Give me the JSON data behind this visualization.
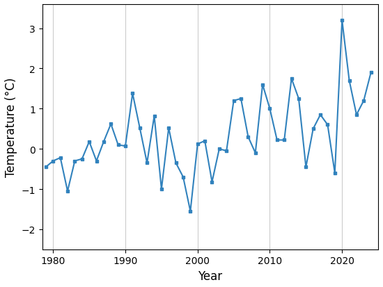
{
  "years": [
    1979,
    1980,
    1981,
    1982,
    1983,
    1984,
    1985,
    1986,
    1987,
    1988,
    1989,
    1990,
    1991,
    1992,
    1993,
    1994,
    1995,
    1996,
    1997,
    1998,
    1999,
    2000,
    2001,
    2002,
    2003,
    2004,
    2005,
    2006,
    2007,
    2008,
    2009,
    2010,
    2011,
    2012,
    2013,
    2014,
    2015,
    2016,
    2017,
    2018,
    2019,
    2020,
    2021,
    2022,
    2023,
    2024
  ],
  "values": [
    -0.45,
    -0.3,
    -0.22,
    -1.05,
    -0.3,
    -0.25,
    0.18,
    -0.3,
    0.18,
    0.62,
    0.1,
    0.07,
    1.38,
    0.52,
    -0.35,
    0.82,
    -1.0,
    0.52,
    -0.35,
    -0.7,
    -1.55,
    0.12,
    0.2,
    -0.82,
    0.0,
    -0.05,
    1.2,
    1.25,
    0.3,
    -0.1,
    1.6,
    1.0,
    0.22,
    0.22,
    1.75,
    1.25,
    -0.45,
    0.5,
    0.85,
    0.6,
    -0.6,
    3.2,
    1.7,
    0.85,
    1.2,
    1.9
  ],
  "line_color": "#3182bd",
  "marker": "s",
  "marker_size": 3.5,
  "linewidth": 1.5,
  "xlabel": "Year",
  "ylabel": "Temperature (°C)",
  "xlim": [
    1978.5,
    2025.0
  ],
  "ylim": [
    -2.5,
    3.6
  ],
  "yticks": [
    -2,
    -1,
    0,
    1,
    2,
    3
  ],
  "xticks": [
    1980,
    1990,
    2000,
    2010,
    2020
  ],
  "grid_color": "#cccccc",
  "grid_linewidth": 0.8,
  "background_color": "#ffffff",
  "figsize": [
    5.5,
    4.14
  ],
  "dpi": 100
}
